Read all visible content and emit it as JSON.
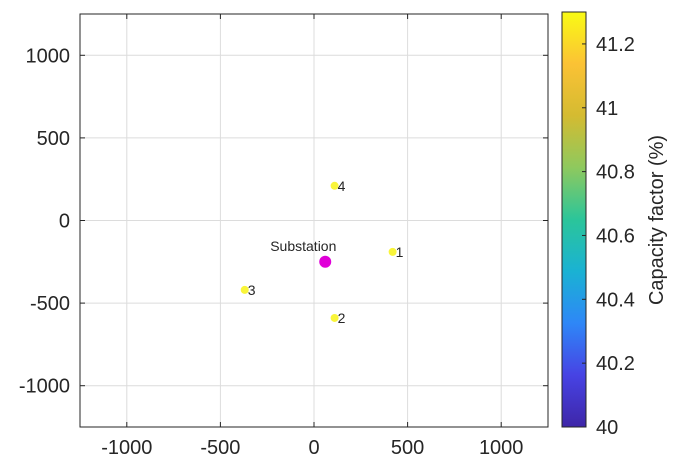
{
  "chart_data": {
    "type": "scatter",
    "title": "",
    "xlabel": "",
    "ylabel": "",
    "xlim": [
      -1250,
      1250
    ],
    "ylim": [
      -1250,
      1250
    ],
    "grid": true,
    "xticks": [
      -1000,
      -500,
      0,
      500,
      1000
    ],
    "yticks": [
      -1000,
      -500,
      0,
      500,
      1000
    ],
    "xtick_labels": [
      "-1000",
      "-500",
      "0",
      "500",
      "1000"
    ],
    "ytick_labels": [
      "-1000",
      "-500",
      "0",
      "500",
      "1000"
    ],
    "points": [
      {
        "label": "1",
        "x": 420,
        "y": -190,
        "capacity_factor": 41.3
      },
      {
        "label": "2",
        "x": 110,
        "y": -590,
        "capacity_factor": 41.3
      },
      {
        "label": "3",
        "x": -370,
        "y": -420,
        "capacity_factor": 41.3
      },
      {
        "label": "4",
        "x": 110,
        "y": 210,
        "capacity_factor": 41.3
      }
    ],
    "substation": {
      "label": "Substation",
      "x": 60,
      "y": -250,
      "color": "#e000d8"
    },
    "colorbar": {
      "label": "Capacity factor (%)",
      "range": [
        40,
        41.3
      ],
      "ticks": [
        40,
        40.2,
        40.4,
        40.6,
        40.8,
        41,
        41.2
      ],
      "tick_labels": [
        "40",
        "40.2",
        "40.4",
        "40.6",
        "40.8",
        "41",
        "41.2"
      ],
      "colormap": [
        "#3e26a8",
        "#4743e4",
        "#2e87f7",
        "#1ab2d3",
        "#2bc59a",
        "#8ec95e",
        "#d4bb31",
        "#fbc235",
        "#f9fb14"
      ]
    },
    "point_color": "#f9f53a",
    "label_color": "#262626"
  }
}
